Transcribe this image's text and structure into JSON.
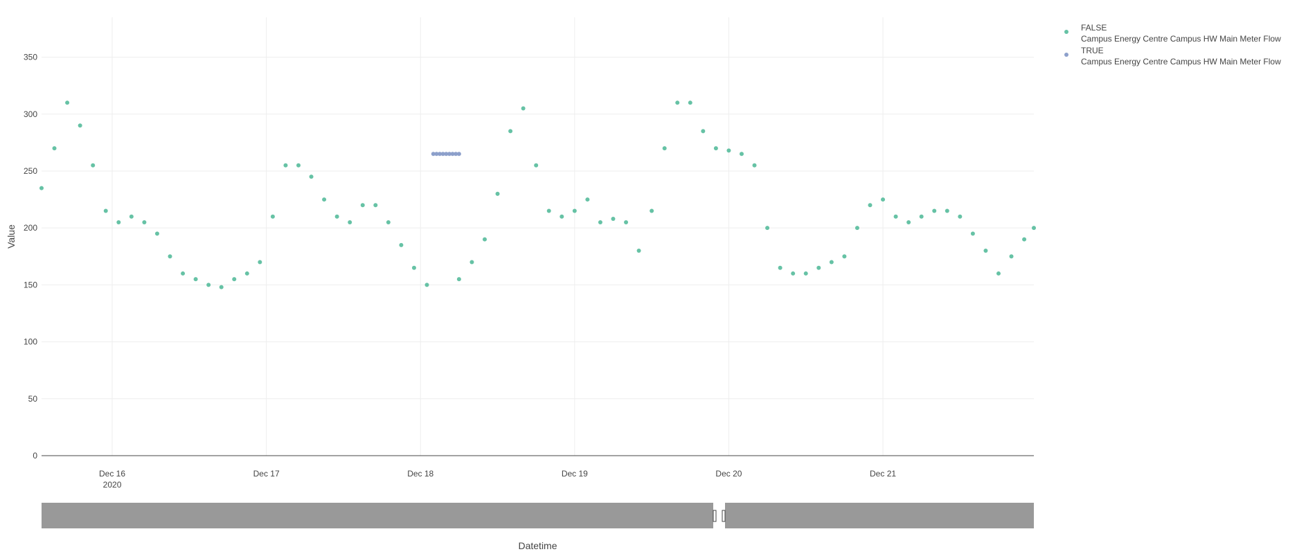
{
  "chart_data": {
    "type": "scatter",
    "title": "",
    "xlabel": "Datetime",
    "ylabel": "Value",
    "x_axis_type": "date",
    "xlim": [
      "2020-12-15 13:00",
      "2020-12-21 23:30"
    ],
    "ylim": [
      0,
      385
    ],
    "y_ticks": [
      0,
      50,
      100,
      150,
      200,
      250,
      300,
      350
    ],
    "x_ticks": [
      {
        "value": "2020-12-16 00:00",
        "label": "Dec 16",
        "sublabel": "2020"
      },
      {
        "value": "2020-12-17 00:00",
        "label": "Dec 17",
        "sublabel": ""
      },
      {
        "value": "2020-12-18 00:00",
        "label": "Dec 18",
        "sublabel": ""
      },
      {
        "value": "2020-12-19 00:00",
        "label": "Dec 19",
        "sublabel": ""
      },
      {
        "value": "2020-12-20 00:00",
        "label": "Dec 20",
        "sublabel": ""
      },
      {
        "value": "2020-12-21 00:00",
        "label": "Dec 21",
        "sublabel": ""
      }
    ],
    "grid": true,
    "legend_position": "top-right",
    "range_slider": {
      "visible": true
    },
    "series": [
      {
        "name": "FALSE",
        "subname": "Campus Energy Centre Campus HW Main Meter Flow",
        "color": "#66c2a5",
        "x": [
          "2020-12-15 13:00",
          "2020-12-15 15:00",
          "2020-12-15 17:00",
          "2020-12-15 19:00",
          "2020-12-15 21:00",
          "2020-12-15 23:00",
          "2020-12-16 01:00",
          "2020-12-16 03:00",
          "2020-12-16 05:00",
          "2020-12-16 07:00",
          "2020-12-16 09:00",
          "2020-12-16 11:00",
          "2020-12-16 13:00",
          "2020-12-16 15:00",
          "2020-12-16 17:00",
          "2020-12-16 19:00",
          "2020-12-16 21:00",
          "2020-12-16 23:00",
          "2020-12-17 01:00",
          "2020-12-17 03:00",
          "2020-12-17 05:00",
          "2020-12-17 07:00",
          "2020-12-17 09:00",
          "2020-12-17 11:00",
          "2020-12-17 13:00",
          "2020-12-17 15:00",
          "2020-12-17 17:00",
          "2020-12-17 19:00",
          "2020-12-17 21:00",
          "2020-12-17 23:00",
          "2020-12-18 01:00",
          "2020-12-18 06:00",
          "2020-12-18 08:00",
          "2020-12-18 10:00",
          "2020-12-18 12:00",
          "2020-12-18 14:00",
          "2020-12-18 16:00",
          "2020-12-18 18:00",
          "2020-12-18 20:00",
          "2020-12-18 22:00",
          "2020-12-19 00:00",
          "2020-12-19 02:00",
          "2020-12-19 04:00",
          "2020-12-19 06:00",
          "2020-12-19 08:00",
          "2020-12-19 10:00",
          "2020-12-19 12:00",
          "2020-12-19 14:00",
          "2020-12-19 16:00",
          "2020-12-19 18:00",
          "2020-12-19 20:00",
          "2020-12-19 22:00",
          "2020-12-20 00:00",
          "2020-12-20 02:00",
          "2020-12-20 04:00",
          "2020-12-20 06:00",
          "2020-12-20 08:00",
          "2020-12-20 10:00",
          "2020-12-20 12:00",
          "2020-12-20 14:00",
          "2020-12-20 16:00",
          "2020-12-20 18:00",
          "2020-12-20 20:00",
          "2020-12-20 22:00",
          "2020-12-21 00:00",
          "2020-12-21 02:00",
          "2020-12-21 04:00",
          "2020-12-21 06:00",
          "2020-12-21 08:00",
          "2020-12-21 10:00",
          "2020-12-21 12:00",
          "2020-12-21 14:00",
          "2020-12-21 16:00",
          "2020-12-21 18:00",
          "2020-12-21 20:00",
          "2020-12-21 22:00",
          "2020-12-21 23:30"
        ],
        "y": [
          235,
          270,
          310,
          290,
          255,
          215,
          205,
          210,
          205,
          195,
          175,
          160,
          155,
          150,
          148,
          155,
          160,
          170,
          210,
          255,
          255,
          245,
          225,
          210,
          205,
          220,
          220,
          205,
          185,
          165,
          150,
          155,
          170,
          190,
          230,
          285,
          305,
          255,
          215,
          210,
          215,
          225,
          205,
          208,
          205,
          180,
          215,
          270,
          310,
          310,
          285,
          270,
          268,
          265,
          255,
          200,
          165,
          160,
          160,
          165,
          170,
          175,
          200,
          220,
          225,
          210,
          205,
          210,
          215,
          215,
          210,
          195,
          180,
          160,
          175,
          190,
          200
        ]
      },
      {
        "name": "TRUE",
        "subname": "Campus Energy Centre Campus HW Main Meter Flow",
        "color": "#8da0cb",
        "x": [
          "2020-12-18 02:00",
          "2020-12-18 02:30",
          "2020-12-18 03:00",
          "2020-12-18 03:30",
          "2020-12-18 04:00",
          "2020-12-18 04:30",
          "2020-12-18 05:00",
          "2020-12-18 05:30",
          "2020-12-18 06:00"
        ],
        "y": [
          265,
          265,
          265,
          265,
          265,
          265,
          265,
          265,
          265
        ]
      }
    ]
  }
}
